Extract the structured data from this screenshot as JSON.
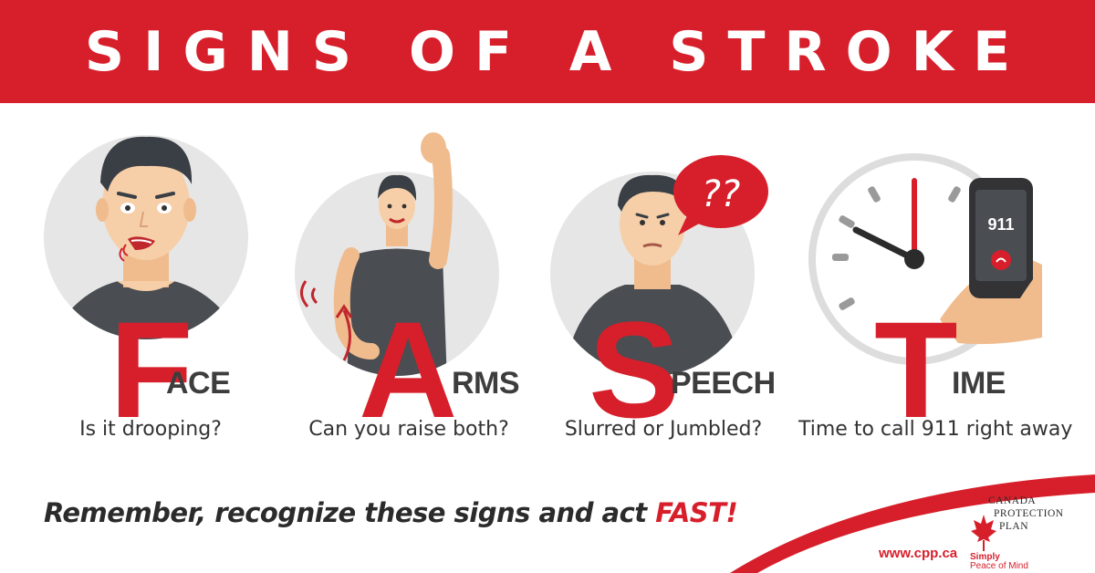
{
  "title": "SIGNS OF A STROKE",
  "panels": [
    {
      "letter": "F",
      "rest": "ACE",
      "caption": "Is it drooping?"
    },
    {
      "letter": "A",
      "rest": "RMS",
      "caption": "Can you raise both?"
    },
    {
      "letter": "S",
      "rest": "PEECH",
      "caption": "Slurred or Jumbled?"
    },
    {
      "letter": "T",
      "rest": "IME",
      "caption": "Time to call 911 right away"
    }
  ],
  "speech_bubble": "??",
  "phone_number": "911",
  "tagline": {
    "text": "Remember, recognize these signs and act ",
    "accent": "FAST!"
  },
  "footer": {
    "url": "www.cpp.ca",
    "logo_line1": "Canada",
    "logo_line2": "Protection",
    "logo_line3": "Plan",
    "logo_tagline1": "Simply",
    "logo_tagline2": "Peace of Mind"
  },
  "colors": {
    "brand_red": "#d71f2b",
    "text_dark": "#3d3d3d",
    "circle_gray": "#e6e6e6",
    "shirt": "#4a4d52",
    "hair": "#3a3f45",
    "skin": "#f6cfa8"
  }
}
